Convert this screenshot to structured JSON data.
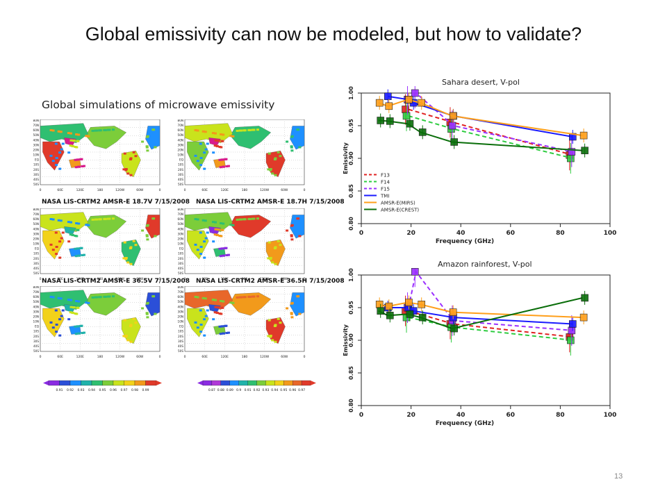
{
  "slide": {
    "title": "Global emissivity can now be modeled, but how to validate?",
    "subtitle": "Global simulations of microwave emissivity",
    "page_number": "13"
  },
  "maps": {
    "row_titles": [
      "",
      "NASA LIS-CRTM2 AMSR-E 18.7V 7/15/2008",
      "NASA LIS-CRTM2 AMSR-E 18.7H 7/15/2008",
      "NASA LIS-CRTM2 AMSR-E 36.5V 7/15/2008",
      "NASA LIS-CRTM2 AMSR-E 36.5H 7/15/2008"
    ],
    "lat_labels": [
      "80N",
      "70N",
      "60N",
      "50N",
      "40N",
      "30N",
      "20N",
      "10N",
      "EQ",
      "10S",
      "20S",
      "30S",
      "40S",
      "50S"
    ],
    "lon_labels": [
      "0",
      "60E",
      "120E",
      "180",
      "120W",
      "60W",
      "0"
    ],
    "colorbar_left": {
      "ticks": [
        "0.91",
        "0.92",
        "0.93",
        "0.94",
        "0.95",
        "0.96",
        "0.97",
        "0.98",
        "0.99"
      ],
      "colors": [
        "#8a2be2",
        "#2b4fd8",
        "#1e90ff",
        "#20b2aa",
        "#2fbf71",
        "#7ccd3a",
        "#c9e31c",
        "#f2d21a",
        "#f29a1b",
        "#e03a2a"
      ]
    },
    "colorbar_right": {
      "ticks": [
        "0.87",
        "0.88",
        "0.89",
        "0.9",
        "0.91",
        "0.92",
        "0.93",
        "0.94",
        "0.95",
        "0.96",
        "0.97"
      ],
      "colors": [
        "#8a2be2",
        "#b03ad8",
        "#2b4fd8",
        "#1e90ff",
        "#20b2aa",
        "#2fbf71",
        "#7ccd3a",
        "#c9e31c",
        "#f2d21a",
        "#f29a1b",
        "#e8672a",
        "#e03a2a"
      ]
    }
  },
  "chart_data": [
    {
      "type": "line",
      "title": "Sahara desert, V-pol",
      "xlabel": "Frequency (GHz)",
      "ylabel": "Emissivity",
      "xlim": [
        0,
        100
      ],
      "ylim": [
        0.8,
        1.0
      ],
      "xticks": [
        "0",
        "20",
        "40",
        "60",
        "80",
        "100"
      ],
      "yticks": [
        "0.80",
        "0.85",
        "0.90",
        "0.95",
        "1.00"
      ],
      "legend_position": "left",
      "series": [
        {
          "name": "F13",
          "color": "#e02020",
          "dash": true,
          "x": [
            19,
            37,
            85
          ],
          "y": [
            0.975,
            0.955,
            0.905
          ]
        },
        {
          "name": "F14",
          "color": "#2ecc40",
          "dash": true,
          "x": [
            19,
            37,
            85
          ],
          "y": [
            0.965,
            0.945,
            0.9
          ]
        },
        {
          "name": "F15",
          "color": "#9b30ff",
          "dash": true,
          "x": [
            19,
            22,
            37,
            85
          ],
          "y": [
            0.99,
            1.0,
            0.95,
            0.91
          ]
        },
        {
          "name": "TMI",
          "color": "#1a1aff",
          "dash": false,
          "x": [
            10.7,
            19,
            21,
            37,
            85
          ],
          "y": [
            0.995,
            0.99,
            0.985,
            0.965,
            0.933
          ]
        },
        {
          "name": "AMSR-E(MIRS)",
          "color": "#ff9f1a",
          "dash": false,
          "x": [
            6.9,
            10.7,
            18.7,
            23.8,
            36.5,
            89
          ],
          "y": [
            0.985,
            0.98,
            0.99,
            0.985,
            0.965,
            0.935
          ]
        },
        {
          "name": "AMSR-E(CREST)",
          "color": "#0a6e0a",
          "dash": false,
          "x": [
            6.9,
            10.7,
            18.7,
            23.8,
            36.5,
            89
          ],
          "y": [
            0.958,
            0.957,
            0.953,
            0.94,
            0.925,
            0.912
          ]
        }
      ]
    },
    {
      "type": "line",
      "title": "Amazon rainforest, V-pol",
      "xlabel": "Frequency (GHz)",
      "ylabel": "Emissivity",
      "xlim": [
        0,
        100
      ],
      "ylim": [
        0.8,
        1.0
      ],
      "xticks": [
        "0",
        "20",
        "40",
        "60",
        "80",
        "100"
      ],
      "yticks": [
        "0.80",
        "0.85",
        "0.90",
        "0.95",
        "1.00"
      ],
      "series": [
        {
          "name": "F13",
          "color": "#e02020",
          "dash": true,
          "x": [
            19,
            37,
            85
          ],
          "y": [
            0.945,
            0.925,
            0.905
          ]
        },
        {
          "name": "F14",
          "color": "#2ecc40",
          "dash": true,
          "x": [
            19,
            37,
            85
          ],
          "y": [
            0.935,
            0.92,
            0.9
          ]
        },
        {
          "name": "F15",
          "color": "#9b30ff",
          "dash": true,
          "x": [
            19,
            22,
            37,
            85
          ],
          "y": [
            0.95,
            1.005,
            0.93,
            0.915
          ]
        },
        {
          "name": "TMI",
          "color": "#1a1aff",
          "dash": false,
          "x": [
            10.7,
            19,
            21,
            37,
            85
          ],
          "y": [
            0.95,
            0.95,
            0.945,
            0.935,
            0.925
          ]
        },
        {
          "name": "AMSR-E(MIRS)",
          "color": "#ff9f1a",
          "dash": false,
          "x": [
            6.9,
            10.7,
            18.7,
            23.8,
            36.5,
            89
          ],
          "y": [
            0.955,
            0.952,
            0.958,
            0.955,
            0.943,
            0.935
          ]
        },
        {
          "name": "AMSR-E(CREST)",
          "color": "#0a6e0a",
          "dash": false,
          "x": [
            6.9,
            10.7,
            18.7,
            23.8,
            36.5,
            89
          ],
          "y": [
            0.945,
            0.938,
            0.94,
            0.935,
            0.918,
            0.965
          ]
        }
      ]
    }
  ]
}
